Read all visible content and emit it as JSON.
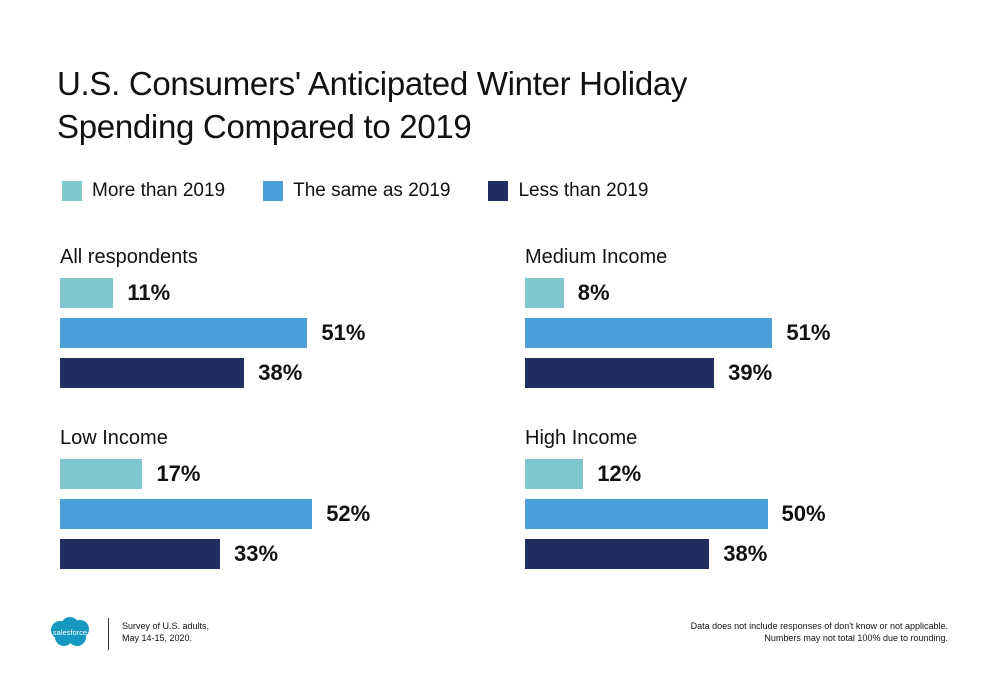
{
  "title_line1": "U.S. Consumers' Anticipated Winter Holiday",
  "title_line2": "Spending Compared to 2019",
  "colors": {
    "more": "#7fc6cf",
    "same": "#4a9fdb",
    "less": "#212c60"
  },
  "chart_data": {
    "type": "bar",
    "orientation": "horizontal",
    "title": "U.S. Consumers' Anticipated Winter Holiday Spending Compared to 2019",
    "series_names": [
      "More than 2019",
      "The same as 2019",
      "Less than 2019"
    ],
    "xlim": [
      0,
      100
    ],
    "grid": false,
    "legend_position": "top",
    "panels": [
      {
        "title": "All respondents",
        "values": [
          11,
          51,
          38
        ],
        "labels": [
          "11%",
          "51%",
          "38%"
        ]
      },
      {
        "title": "Medium Income",
        "values": [
          8,
          51,
          39
        ],
        "labels": [
          "8%",
          "51%",
          "39%"
        ]
      },
      {
        "title": "Low Income",
        "values": [
          17,
          52,
          33
        ],
        "labels": [
          "17%",
          "52%",
          "33%"
        ]
      },
      {
        "title": "High Income",
        "values": [
          12,
          50,
          38
        ],
        "labels": [
          "12%",
          "50%",
          "38%"
        ]
      }
    ]
  },
  "footer": {
    "logo_text": "salesforce",
    "survey_line1": "Survey of U.S. adults,",
    "survey_line2": "May 14-15, 2020.",
    "note_line1": "Data does not include responses of don't know or not applicable.",
    "note_line2": "Numbers may not total 100% due to rounding."
  }
}
